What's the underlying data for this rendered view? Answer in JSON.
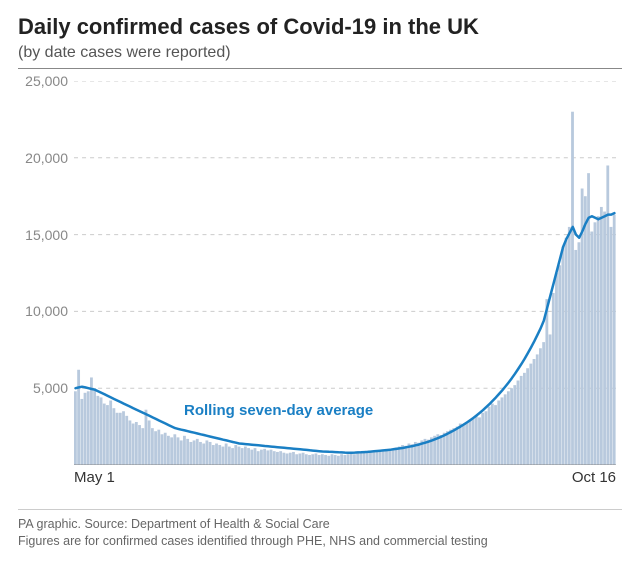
{
  "title": "Daily confirmed cases of Covid-19 in the UK",
  "subtitle": "(by date cases were reported)",
  "annotation": "Rolling seven-day average",
  "footer_line1": "PA graphic. Source: Department of Health & Social Care",
  "footer_line2": "Figures are for confirmed cases identified through PHE, NHS and commercial testing",
  "chart": {
    "type": "bar+line",
    "y_axis": {
      "min": 0,
      "max": 25000,
      "ticks": [
        5000,
        10000,
        15000,
        20000,
        25000
      ],
      "tick_labels": [
        "5,000",
        "10,000",
        "15,000",
        "20,000",
        "25,000"
      ]
    },
    "x_axis": {
      "start_label": "May 1",
      "end_label": "Oct 16",
      "n_points": 169
    },
    "colors": {
      "bar": "#b8c9dd",
      "line": "#1a7fc4",
      "grid": "#cccccc",
      "axis": "#888888",
      "title": "#222222",
      "subtitle": "#555555",
      "annotation": "#1a7fc4",
      "footer": "#666666",
      "ylabel": "#888888",
      "background": "#ffffff"
    },
    "line_width": 2.5,
    "bar_values": [
      4800,
      6200,
      4300,
      4700,
      4800,
      5700,
      5000,
      4500,
      4400,
      4000,
      3900,
      4200,
      3700,
      3400,
      3400,
      3500,
      3200,
      2900,
      2700,
      2800,
      2600,
      2400,
      3600,
      2900,
      2400,
      2200,
      2300,
      2000,
      2100,
      1900,
      1800,
      2000,
      1800,
      1600,
      1900,
      1700,
      1500,
      1600,
      1700,
      1500,
      1400,
      1600,
      1500,
      1300,
      1400,
      1300,
      1200,
      1400,
      1200,
      1100,
      1300,
      1200,
      1100,
      1200,
      1100,
      1000,
      1100,
      900,
      1000,
      1050,
      950,
      1000,
      900,
      850,
      900,
      800,
      750,
      800,
      850,
      700,
      750,
      800,
      700,
      650,
      700,
      750,
      650,
      700,
      650,
      600,
      700,
      650,
      600,
      700,
      650,
      700,
      750,
      700,
      750,
      800,
      850,
      800,
      900,
      850,
      900,
      950,
      1000,
      1050,
      1000,
      1100,
      1150,
      1200,
      1300,
      1250,
      1400,
      1350,
      1500,
      1450,
      1600,
      1700,
      1650,
      1800,
      1900,
      2000,
      1950,
      2100,
      2200,
      2300,
      2400,
      2500,
      2700,
      2600,
      2800,
      2900,
      3000,
      3200,
      3100,
      3400,
      3500,
      3800,
      4000,
      3900,
      4200,
      4400,
      4600,
      4800,
      5000,
      5200,
      5500,
      5800,
      6000,
      6300,
      6600,
      6900,
      7200,
      7600,
      8000,
      10800,
      8500,
      11200,
      12500,
      13000,
      14200,
      14800,
      15500,
      23000,
      14000,
      14500,
      18000,
      17500,
      19000,
      15200,
      15800,
      16200,
      16800,
      16500,
      19500,
      15500,
      16300
    ],
    "rolling_avg": [
      5000,
      5050,
      5100,
      5050,
      5000,
      4950,
      4900,
      4800,
      4700,
      4600,
      4500,
      4400,
      4300,
      4200,
      4100,
      4000,
      3900,
      3800,
      3700,
      3600,
      3500,
      3400,
      3300,
      3200,
      3100,
      3000,
      2900,
      2800,
      2700,
      2600,
      2500,
      2400,
      2350,
      2300,
      2250,
      2200,
      2150,
      2100,
      2050,
      2000,
      1950,
      1900,
      1850,
      1800,
      1750,
      1700,
      1650,
      1600,
      1550,
      1500,
      1450,
      1400,
      1380,
      1360,
      1340,
      1320,
      1300,
      1280,
      1260,
      1240,
      1220,
      1200,
      1180,
      1160,
      1140,
      1120,
      1100,
      1080,
      1060,
      1040,
      1020,
      1000,
      980,
      960,
      940,
      920,
      900,
      880,
      870,
      860,
      850,
      840,
      830,
      820,
      810,
      800,
      800,
      810,
      820,
      830,
      840,
      850,
      870,
      890,
      910,
      930,
      950,
      970,
      990,
      1020,
      1050,
      1080,
      1110,
      1150,
      1190,
      1230,
      1280,
      1330,
      1390,
      1450,
      1520,
      1590,
      1670,
      1750,
      1840,
      1940,
      2040,
      2150,
      2260,
      2380,
      2500,
      2630,
      2770,
      2910,
      3060,
      3220,
      3390,
      3570,
      3760,
      3960,
      4170,
      4390,
      4620,
      4860,
      5110,
      5370,
      5650,
      5940,
      6250,
      6570,
      6910,
      7270,
      7650,
      8050,
      8470,
      8900,
      9400,
      10200,
      11000,
      11800,
      12600,
      13400,
      14200,
      14700,
      15100,
      15500,
      15000,
      14800,
      15200,
      15700,
      16100,
      16200,
      16100,
      16000,
      16100,
      16200,
      16300,
      16300,
      16400
    ]
  },
  "fonts": {
    "title_size": 22,
    "subtitle_size": 16,
    "axis_label_size": 14,
    "annotation_size": 15,
    "footer_size": 12.5
  }
}
